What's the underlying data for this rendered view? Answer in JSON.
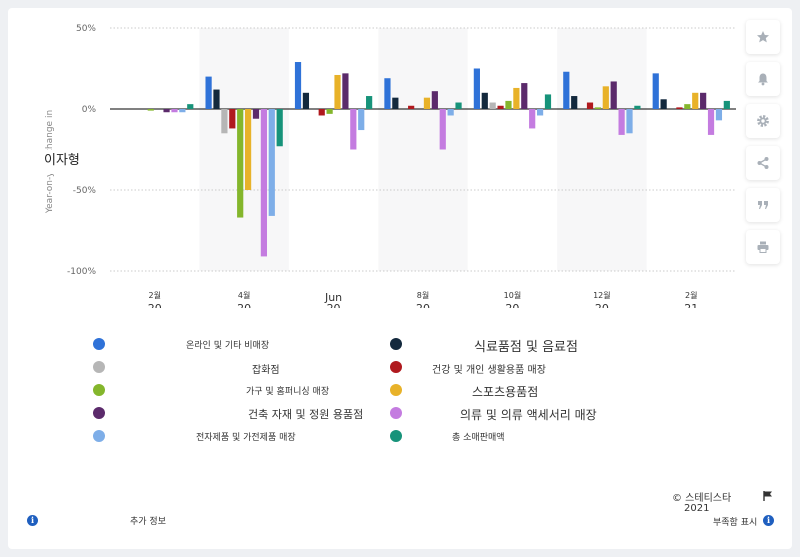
{
  "chart_data": {
    "type": "bar",
    "ylabel": "Year-on-year change in",
    "ylabel_overlay": "이자형",
    "yticks": [
      "50%",
      "0%",
      "-50%",
      "-100%"
    ],
    "ylim": [
      -100,
      50
    ],
    "grid": true,
    "categories": [
      {
        "month": "2월",
        "year": "20"
      },
      {
        "month": "4월",
        "year": "20"
      },
      {
        "month": "Jun",
        "year": "20"
      },
      {
        "month": "8월",
        "year": "20"
      },
      {
        "month": "10월",
        "year": "20"
      },
      {
        "month": "12월",
        "year": "20"
      },
      {
        "month": "2월",
        "year": "21"
      }
    ],
    "series": [
      {
        "name": "온라인 및 기타 비매장",
        "color": "#2f72d8",
        "values": [
          0,
          20,
          29,
          19,
          25,
          23,
          22
        ]
      },
      {
        "name": "식료품점 및 음료점",
        "color": "#13293d",
        "values": [
          0,
          12,
          10,
          7,
          10,
          8,
          6
        ]
      },
      {
        "name": "잡화점",
        "color": "#b6b6b6",
        "values": [
          0,
          -15,
          0,
          0,
          4,
          0,
          0
        ]
      },
      {
        "name": "건강 및 개인 생활용품 매장",
        "color": "#b0191e",
        "values": [
          0,
          -12,
          -4,
          2,
          2,
          4,
          1
        ]
      },
      {
        "name": "가구 및 홈퍼니싱 매장",
        "color": "#84b62c",
        "values": [
          -1,
          -67,
          -3,
          0,
          5,
          1,
          3
        ]
      },
      {
        "name": "스포츠용품점",
        "color": "#e8b229",
        "values": [
          0,
          -50,
          21,
          7,
          13,
          14,
          10
        ]
      },
      {
        "name": "건축 자재 및 정원 용품점",
        "color": "#5b2a6b",
        "values": [
          -2,
          -6,
          22,
          11,
          16,
          17,
          10
        ]
      },
      {
        "name": "의류 및 의류 액세서리 매장",
        "color": "#c47ce0",
        "values": [
          -2,
          -91,
          -25,
          -25,
          -12,
          -16,
          -16
        ]
      },
      {
        "name": "전자제품 및 가전제품 매장",
        "color": "#7eaee8",
        "values": [
          -2,
          -66,
          -13,
          -4,
          -4,
          -15,
          -7
        ]
      },
      {
        "name": "총 소매판매액",
        "color": "#17937a",
        "values": [
          3,
          -23,
          8,
          4,
          9,
          2,
          5
        ]
      }
    ]
  },
  "footer": {
    "more_info": "추가 정보",
    "copyright": "© 스테티스타",
    "year": "2021",
    "report": "부족함 표시"
  },
  "icons": [
    "star-icon",
    "bell-icon",
    "gear-icon",
    "share-icon",
    "quote-icon",
    "print-icon",
    "info-icon",
    "flag-icon"
  ]
}
